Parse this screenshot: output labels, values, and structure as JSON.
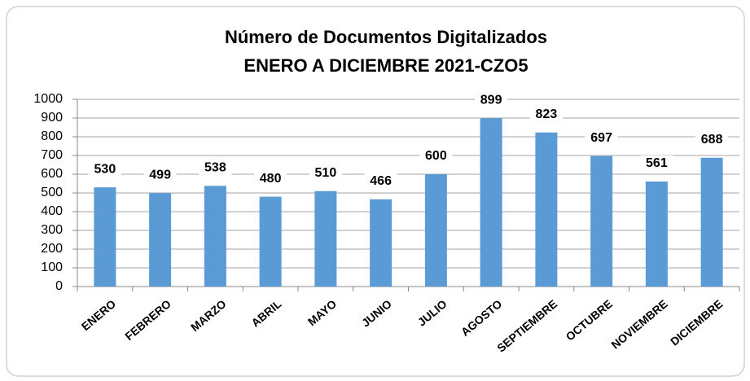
{
  "chart_data": {
    "type": "bar",
    "title": "Número de Documentos Digitalizados",
    "subtitle": "ENERO A DICIEMBRE 2021-CZO5",
    "categories": [
      "ENERO",
      "FEBRERO",
      "MARZO",
      "ABRIL",
      "MAYO",
      "JUNIO",
      "JULIO",
      "AGOSTO",
      "SEPTIEMBRE",
      "OCTUBRE",
      "NOVIEMBRE",
      "DICIEMBRE"
    ],
    "values": [
      530,
      499,
      538,
      480,
      510,
      466,
      600,
      899,
      823,
      697,
      561,
      688
    ],
    "color": "#5b9bd5",
    "ylim": [
      0,
      1000
    ],
    "yticks": [
      0,
      100,
      200,
      300,
      400,
      500,
      600,
      700,
      800,
      900,
      1000
    ],
    "grid": true
  }
}
